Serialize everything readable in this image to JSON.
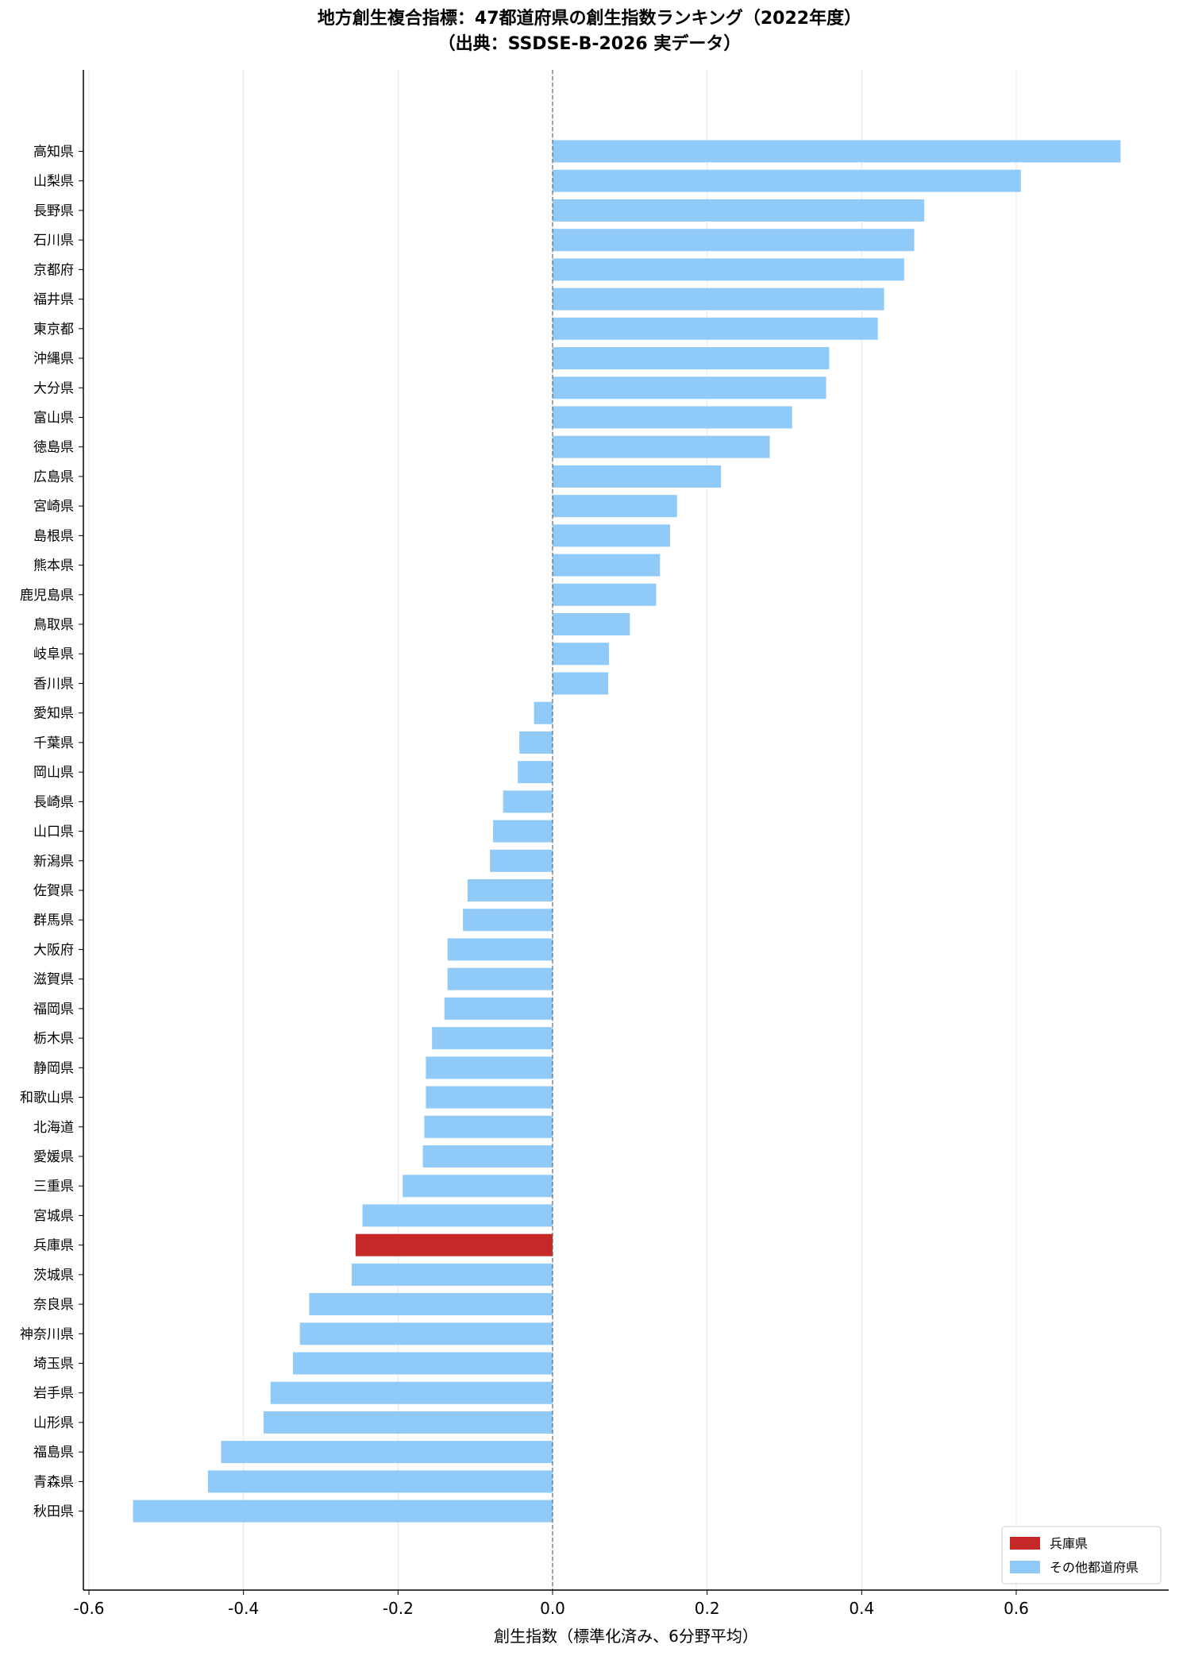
{
  "chart_data": {
    "type": "bar",
    "orientation": "horizontal",
    "title": "地方創生複合指標：47都道府県の創生指数ランキング（2022年度）",
    "subtitle": "（出典：SSDSE-B-2026 実データ）",
    "xlabel": "創生指数（標準化済み、6分野平均）",
    "ylabel": "",
    "xlim": [
      -0.61,
      0.8
    ],
    "xticks": [
      -0.6,
      -0.4,
      -0.2,
      0.0,
      0.2,
      0.4,
      0.6
    ],
    "xtick_labels": [
      "-0.6",
      "-0.4",
      "-0.2",
      "0.0",
      "0.2",
      "0.4",
      "0.6"
    ],
    "grid": "vertical",
    "reference_line": 0.0,
    "legend_placement": "bottom-right",
    "legend": [
      {
        "label": "兵庫県",
        "color": "#c62828"
      },
      {
        "label": "その他都道府県",
        "color": "#90caf9"
      }
    ],
    "highlight_color": "#c62828",
    "base_color": "#90caf9",
    "categories": [
      "高知県",
      "山梨県",
      "長野県",
      "石川県",
      "京都府",
      "福井県",
      "東京都",
      "沖縄県",
      "大分県",
      "富山県",
      "徳島県",
      "広島県",
      "宮崎県",
      "島根県",
      "熊本県",
      "鹿児島県",
      "鳥取県",
      "岐阜県",
      "香川県",
      "愛知県",
      "千葉県",
      "岡山県",
      "長崎県",
      "山口県",
      "新潟県",
      "佐賀県",
      "群馬県",
      "大阪府",
      "滋賀県",
      "福岡県",
      "栃木県",
      "静岡県",
      "和歌山県",
      "北海道",
      "愛媛県",
      "三重県",
      "宮城県",
      "兵庫県",
      "茨城県",
      "奈良県",
      "神奈川県",
      "埼玉県",
      "岩手県",
      "山形県",
      "福島県",
      "青森県",
      "秋田県"
    ],
    "values": [
      0.735,
      0.606,
      0.481,
      0.468,
      0.455,
      0.429,
      0.421,
      0.358,
      0.354,
      0.31,
      0.281,
      0.218,
      0.161,
      0.152,
      0.139,
      0.134,
      0.1,
      0.073,
      0.072,
      -0.024,
      -0.043,
      -0.045,
      -0.064,
      -0.077,
      -0.081,
      -0.11,
      -0.116,
      -0.136,
      -0.136,
      -0.14,
      -0.156,
      -0.164,
      -0.164,
      -0.166,
      -0.168,
      -0.194,
      -0.246,
      -0.255,
      -0.26,
      -0.315,
      -0.327,
      -0.336,
      -0.365,
      -0.374,
      -0.429,
      -0.446,
      -0.543
    ],
    "highlight": "兵庫県"
  }
}
